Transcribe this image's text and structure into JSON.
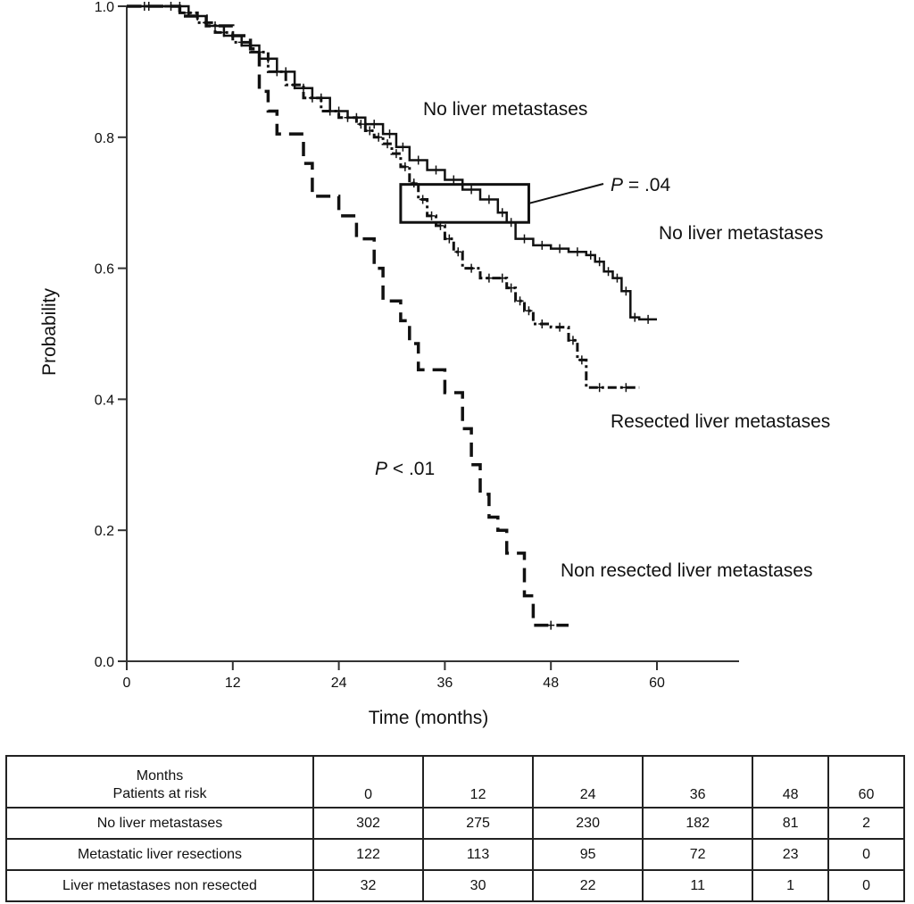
{
  "chart_data": {
    "type": "line",
    "subtype": "kaplan-meier",
    "xlabel": "Time (months)",
    "ylabel": "Probability",
    "xlim": [
      0,
      70
    ],
    "ylim": [
      0,
      1.0
    ],
    "xticks": [
      0,
      12,
      24,
      36,
      48,
      60
    ],
    "xtick_labels": [
      "0",
      "12",
      "24",
      "36",
      "48",
      "60"
    ],
    "yticks": [
      0.0,
      0.2,
      0.4,
      0.6,
      0.8,
      1.0
    ],
    "ytick_labels": [
      "0.0",
      "0.2",
      "0.4",
      "0.6",
      "0.8",
      "1.0"
    ],
    "grid": false,
    "series": [
      {
        "name": "No liver metastases",
        "style": "solid-step-with-censor-marks",
        "x": [
          0,
          5,
          7,
          9,
          11,
          13,
          15,
          17,
          19,
          21,
          23,
          25,
          27,
          29,
          30.5,
          32,
          34,
          36,
          38,
          40,
          42,
          43,
          44,
          46,
          48,
          50,
          52,
          53,
          54,
          55,
          56,
          57,
          58,
          60
        ],
        "y": [
          1.0,
          1.0,
          0.985,
          0.97,
          0.955,
          0.94,
          0.92,
          0.9,
          0.875,
          0.86,
          0.84,
          0.83,
          0.82,
          0.805,
          0.785,
          0.765,
          0.75,
          0.735,
          0.72,
          0.705,
          0.685,
          0.67,
          0.645,
          0.635,
          0.63,
          0.625,
          0.62,
          0.61,
          0.595,
          0.585,
          0.565,
          0.525,
          0.522,
          0.522
        ]
      },
      {
        "name": "Resected liver metastases",
        "style": "dash-dot-step-with-censor-marks",
        "x": [
          0,
          4,
          6,
          8,
          10,
          12,
          14,
          16,
          18,
          20,
          22,
          24,
          26,
          27,
          28,
          29,
          30,
          31,
          32,
          33,
          34,
          35,
          36,
          37,
          38,
          40,
          42,
          43,
          44,
          45,
          46,
          48,
          50,
          51,
          52,
          55,
          58
        ],
        "y": [
          1.0,
          1.0,
          0.99,
          0.975,
          0.96,
          0.945,
          0.93,
          0.9,
          0.88,
          0.86,
          0.84,
          0.83,
          0.82,
          0.81,
          0.8,
          0.79,
          0.775,
          0.755,
          0.73,
          0.705,
          0.68,
          0.665,
          0.645,
          0.625,
          0.6,
          0.585,
          0.585,
          0.57,
          0.55,
          0.535,
          0.515,
          0.51,
          0.49,
          0.46,
          0.418,
          0.418,
          0.418
        ]
      },
      {
        "name": "Non resected liver metastases",
        "style": "dashed-step",
        "x": [
          0,
          3,
          6,
          9,
          12,
          14,
          15,
          16,
          17,
          18,
          20,
          21,
          22,
          24,
          25,
          26,
          28,
          29,
          30,
          31,
          32,
          33,
          34,
          35,
          36,
          38,
          39,
          40,
          41,
          42,
          43,
          44,
          45,
          46,
          50
        ],
        "y": [
          1.0,
          1.0,
          0.985,
          0.97,
          0.955,
          0.935,
          0.87,
          0.84,
          0.805,
          0.805,
          0.76,
          0.71,
          0.71,
          0.68,
          0.68,
          0.645,
          0.6,
          0.55,
          0.55,
          0.52,
          0.485,
          0.445,
          0.445,
          0.445,
          0.41,
          0.355,
          0.3,
          0.255,
          0.22,
          0.2,
          0.165,
          0.165,
          0.1,
          0.055,
          0.055
        ]
      }
    ],
    "annotations": {
      "label_top": "No liver metastases",
      "label_right": "No liver metastases",
      "label_resected": "Resected liver metastases",
      "label_nonresected": "Non resected liver metastases",
      "p_eq_prefix": "P",
      "p_eq_suffix": " = .04",
      "p_lt_prefix": "P",
      "p_lt_suffix": " < .01",
      "box_x_range": [
        31,
        45.5
      ],
      "box_y_range": [
        0.67,
        0.728
      ]
    }
  },
  "risk_table": {
    "header_line1": "Months",
    "header_line2": "Patients at risk",
    "months": [
      "0",
      "12",
      "24",
      "36",
      "48",
      "60"
    ],
    "rows": [
      {
        "label": "No liver metastases",
        "values": [
          "302",
          "275",
          "230",
          "182",
          "81",
          "2"
        ]
      },
      {
        "label": "Metastatic liver resections",
        "values": [
          "122",
          "113",
          "95",
          "72",
          "23",
          "0"
        ]
      },
      {
        "label": "Liver metastases non resected",
        "values": [
          "32",
          "30",
          "22",
          "11",
          "1",
          "0"
        ]
      }
    ]
  }
}
